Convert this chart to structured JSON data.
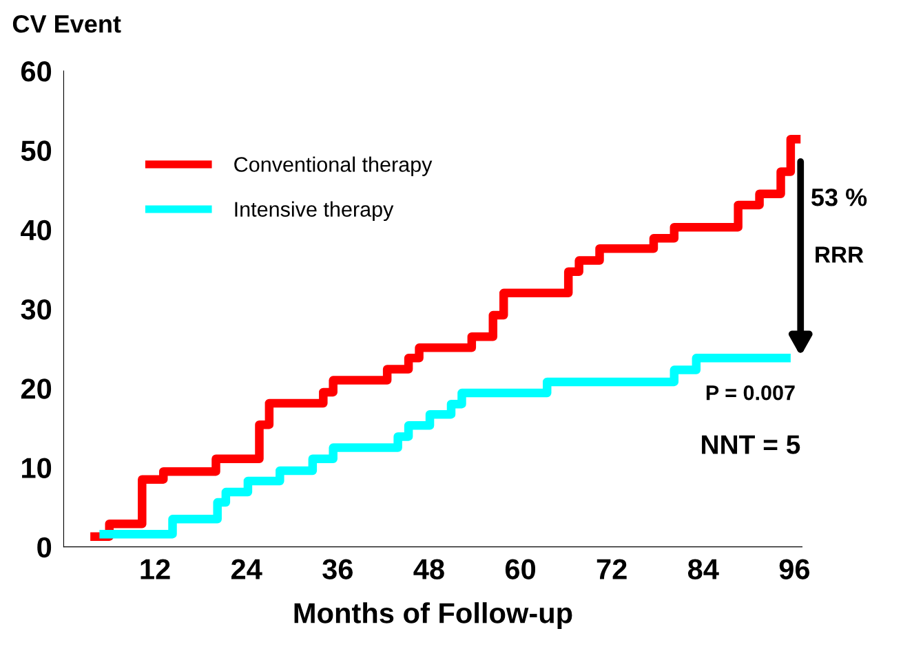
{
  "chart_data": {
    "type": "step",
    "ylabel": "CV Event",
    "xlabel": "Months of Follow-up",
    "xlim": [
      0,
      97
    ],
    "ylim": [
      0,
      60
    ],
    "xticks": [
      12,
      24,
      36,
      48,
      60,
      72,
      84,
      96
    ],
    "yticks": [
      0,
      10,
      20,
      30,
      40,
      50,
      60
    ],
    "grid": false,
    "legend": "top left",
    "line_style": "solid",
    "series": [
      {
        "name": "Conventional therapy",
        "color": "#ff0000",
        "x": [
          3.5,
          6.0,
          10.3,
          13.1,
          20.0,
          25.7,
          27.0,
          34.1,
          35.4,
          42.5,
          45.3,
          46.7,
          53.6,
          56.4,
          57.8,
          66.3,
          67.7,
          70.4,
          77.5,
          80.2,
          88.6,
          91.4,
          94.2,
          95.5,
          96.8
        ],
        "values": [
          1.3,
          2.9,
          8.5,
          9.5,
          11.1,
          15.4,
          18.1,
          19.5,
          21.0,
          22.4,
          23.8,
          25.1,
          26.5,
          29.2,
          32.0,
          34.7,
          36.1,
          37.6,
          38.9,
          40.3,
          43.1,
          44.5,
          47.3,
          51.4,
          51.4
        ]
      },
      {
        "name": "Intensive therapy",
        "color": "#00ffff",
        "x": [
          4.7,
          14.3,
          20.2,
          21.3,
          24.2,
          28.4,
          32.7,
          35.4,
          43.9,
          45.3,
          48.1,
          50.9,
          52.3,
          63.5,
          80.2,
          83.1,
          95.5
        ],
        "values": [
          1.6,
          3.5,
          5.6,
          6.9,
          8.3,
          9.6,
          11.1,
          12.5,
          13.9,
          15.3,
          16.7,
          18.0,
          19.4,
          20.8,
          22.3,
          23.8,
          23.8
        ]
      }
    ],
    "annotations": [
      "53 %",
      "RRR",
      "P = 0.007",
      "NNT = 5"
    ]
  }
}
